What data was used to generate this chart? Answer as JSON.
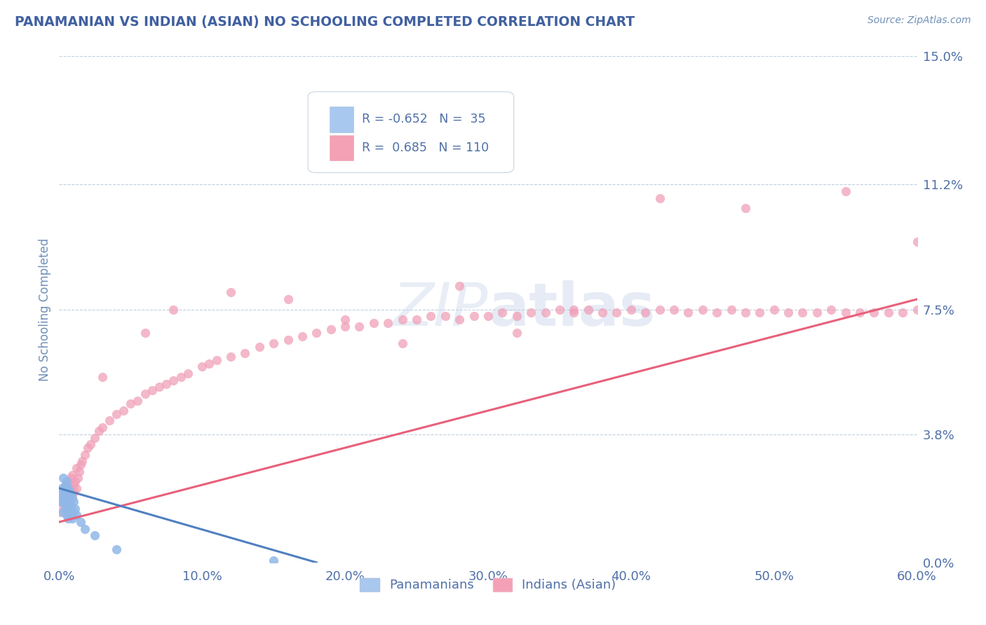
{
  "title": "PANAMANIAN VS INDIAN (ASIAN) NO SCHOOLING COMPLETED CORRELATION CHART",
  "source": "Source: ZipAtlas.com",
  "ylabel": "No Schooling Completed",
  "xlabel_ticks": [
    "0.0%",
    "10.0%",
    "20.0%",
    "30.0%",
    "40.0%",
    "50.0%",
    "60.0%"
  ],
  "xlabel_vals": [
    0.0,
    10.0,
    20.0,
    30.0,
    40.0,
    50.0,
    60.0
  ],
  "ytick_labels": [
    "0.0%",
    "3.8%",
    "7.5%",
    "11.2%",
    "15.0%"
  ],
  "ytick_vals": [
    0.0,
    3.8,
    7.5,
    11.2,
    15.0
  ],
  "xlim": [
    0.0,
    60.0
  ],
  "ylim": [
    0.0,
    15.0
  ],
  "legend_R1": "-0.652",
  "legend_N1": "35",
  "legend_R2": "0.685",
  "legend_N2": "110",
  "legend_label1": "Panamanians",
  "legend_label2": "Indians (Asian)",
  "color_pan": "#a8c8f0",
  "color_ind": "#f4a0b5",
  "color_pan_line": "#5080c0",
  "color_ind_line": "#e8607a",
  "color_pan_marker": "#90b8e8",
  "color_ind_marker": "#f0a0b8",
  "watermark_part1": "ZIP",
  "watermark_part2": "atlas",
  "title_color": "#4060a0",
  "axis_label_color": "#7090b8",
  "tick_color": "#5070a8",
  "pan_scatter_x": [
    0.1,
    0.2,
    0.2,
    0.3,
    0.3,
    0.3,
    0.4,
    0.4,
    0.4,
    0.4,
    0.5,
    0.5,
    0.5,
    0.5,
    0.6,
    0.6,
    0.6,
    0.6,
    0.7,
    0.7,
    0.7,
    0.8,
    0.8,
    0.8,
    0.9,
    0.9,
    1.0,
    1.0,
    1.1,
    1.2,
    1.5,
    1.8,
    2.5,
    4.0,
    15.0
  ],
  "pan_scatter_y": [
    2.0,
    1.8,
    2.2,
    1.5,
    2.5,
    1.9,
    1.6,
    2.1,
    1.8,
    2.3,
    1.4,
    2.0,
    1.7,
    2.4,
    1.3,
    1.9,
    2.2,
    1.6,
    1.5,
    2.1,
    1.8,
    1.4,
    2.0,
    1.7,
    1.3,
    1.9,
    1.5,
    1.8,
    1.6,
    1.4,
    1.2,
    1.0,
    0.8,
    0.4,
    0.05
  ],
  "ind_scatter_x": [
    0.1,
    0.2,
    0.3,
    0.3,
    0.4,
    0.4,
    0.5,
    0.5,
    0.5,
    0.6,
    0.6,
    0.7,
    0.7,
    0.8,
    0.8,
    0.9,
    0.9,
    1.0,
    1.0,
    1.1,
    1.2,
    1.2,
    1.3,
    1.4,
    1.5,
    1.6,
    1.8,
    2.0,
    2.2,
    2.5,
    2.8,
    3.0,
    3.5,
    4.0,
    4.5,
    5.0,
    5.5,
    6.0,
    6.5,
    7.0,
    7.5,
    8.0,
    8.5,
    9.0,
    10.0,
    10.5,
    11.0,
    12.0,
    13.0,
    14.0,
    15.0,
    16.0,
    17.0,
    18.0,
    19.0,
    20.0,
    21.0,
    22.0,
    23.0,
    24.0,
    25.0,
    26.0,
    27.0,
    28.0,
    29.0,
    30.0,
    31.0,
    32.0,
    33.0,
    34.0,
    35.0,
    36.0,
    37.0,
    38.0,
    39.0,
    40.0,
    41.0,
    42.0,
    43.0,
    44.0,
    45.0,
    46.0,
    47.0,
    48.0,
    49.0,
    50.0,
    51.0,
    52.0,
    53.0,
    54.0,
    55.0,
    56.0,
    57.0,
    58.0,
    59.0,
    60.0,
    3.0,
    6.0,
    8.0,
    12.0,
    16.0,
    20.0,
    24.0,
    28.0,
    32.0,
    36.0,
    42.0,
    48.0,
    55.0,
    60.0
  ],
  "ind_scatter_y": [
    1.5,
    1.8,
    2.0,
    1.7,
    2.2,
    1.9,
    1.6,
    2.3,
    2.0,
    1.8,
    2.4,
    2.1,
    1.9,
    2.5,
    2.2,
    2.0,
    2.6,
    2.3,
    2.1,
    2.4,
    2.2,
    2.8,
    2.5,
    2.7,
    2.9,
    3.0,
    3.2,
    3.4,
    3.5,
    3.7,
    3.9,
    4.0,
    4.2,
    4.4,
    4.5,
    4.7,
    4.8,
    5.0,
    5.1,
    5.2,
    5.3,
    5.4,
    5.5,
    5.6,
    5.8,
    5.9,
    6.0,
    6.1,
    6.2,
    6.4,
    6.5,
    6.6,
    6.7,
    6.8,
    6.9,
    7.0,
    7.0,
    7.1,
    7.1,
    7.2,
    7.2,
    7.3,
    7.3,
    7.2,
    7.3,
    7.3,
    7.4,
    7.3,
    7.4,
    7.4,
    7.5,
    7.4,
    7.5,
    7.4,
    7.4,
    7.5,
    7.4,
    7.5,
    7.5,
    7.4,
    7.5,
    7.4,
    7.5,
    7.4,
    7.4,
    7.5,
    7.4,
    7.4,
    7.4,
    7.5,
    7.4,
    7.4,
    7.4,
    7.4,
    7.4,
    7.5,
    5.5,
    6.8,
    7.5,
    8.0,
    7.8,
    7.2,
    6.5,
    8.2,
    6.8,
    7.5,
    10.8,
    10.5,
    11.0,
    9.5
  ]
}
